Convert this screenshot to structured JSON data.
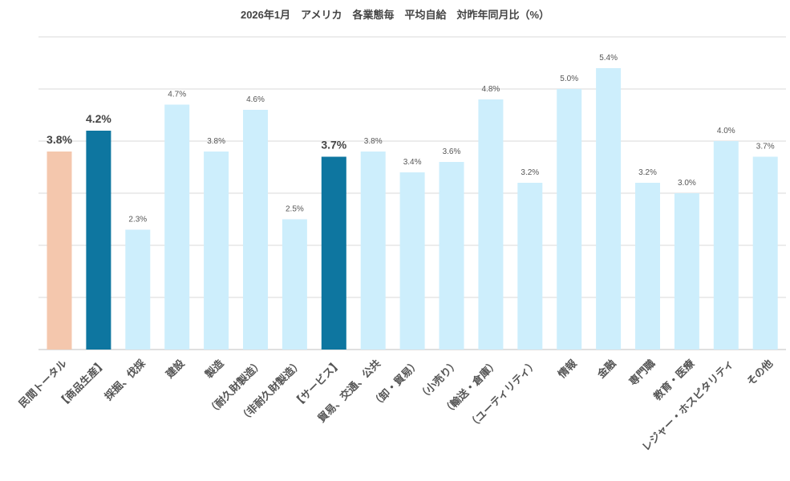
{
  "chart_data": {
    "type": "bar",
    "title": "2026年1月　アメリカ　各業態毎　平均自給　対昨年同月比（%）",
    "xlabel": "",
    "ylabel": "",
    "ylim": [
      0,
      6
    ],
    "grid": true,
    "categories": [
      "民間トータル",
      "【商品生産】",
      "採掘、伐採",
      "建設",
      "製造",
      "（耐久財製造）",
      "（非耐久財製造）",
      "【サービス】",
      "貿易、交通、公共",
      "（卸・貿易）",
      "（小売り）",
      "（輸送・倉庫）",
      "（ユーティリティ）",
      "情報",
      "金融",
      "専門職",
      "教育・医療",
      "レジャー・ホスピタリティ",
      "その他"
    ],
    "values": [
      3.8,
      4.2,
      2.3,
      4.7,
      3.8,
      4.6,
      2.5,
      3.7,
      3.8,
      3.4,
      3.6,
      4.8,
      3.2,
      5.0,
      5.4,
      3.2,
      3.0,
      4.0,
      3.7
    ],
    "data_labels": [
      "3.8%",
      "4.2%",
      "2.3%",
      "4.7%",
      "3.8%",
      "4.6%",
      "2.5%",
      "3.7%",
      "3.8%",
      "3.4%",
      "3.6%",
      "4.8%",
      "3.2%",
      "5.0%",
      "5.4%",
      "3.2%",
      "3.0%",
      "4.0%",
      "3.7%"
    ],
    "colors": {
      "total": "#f4c7ad",
      "group": "#0e76a0",
      "sector": "#cdeefc"
    },
    "bar_kinds": [
      "total",
      "group",
      "sector",
      "sector",
      "sector",
      "sector",
      "sector",
      "group",
      "sector",
      "sector",
      "sector",
      "sector",
      "sector",
      "sector",
      "sector",
      "sector",
      "sector",
      "sector",
      "sector"
    ]
  }
}
